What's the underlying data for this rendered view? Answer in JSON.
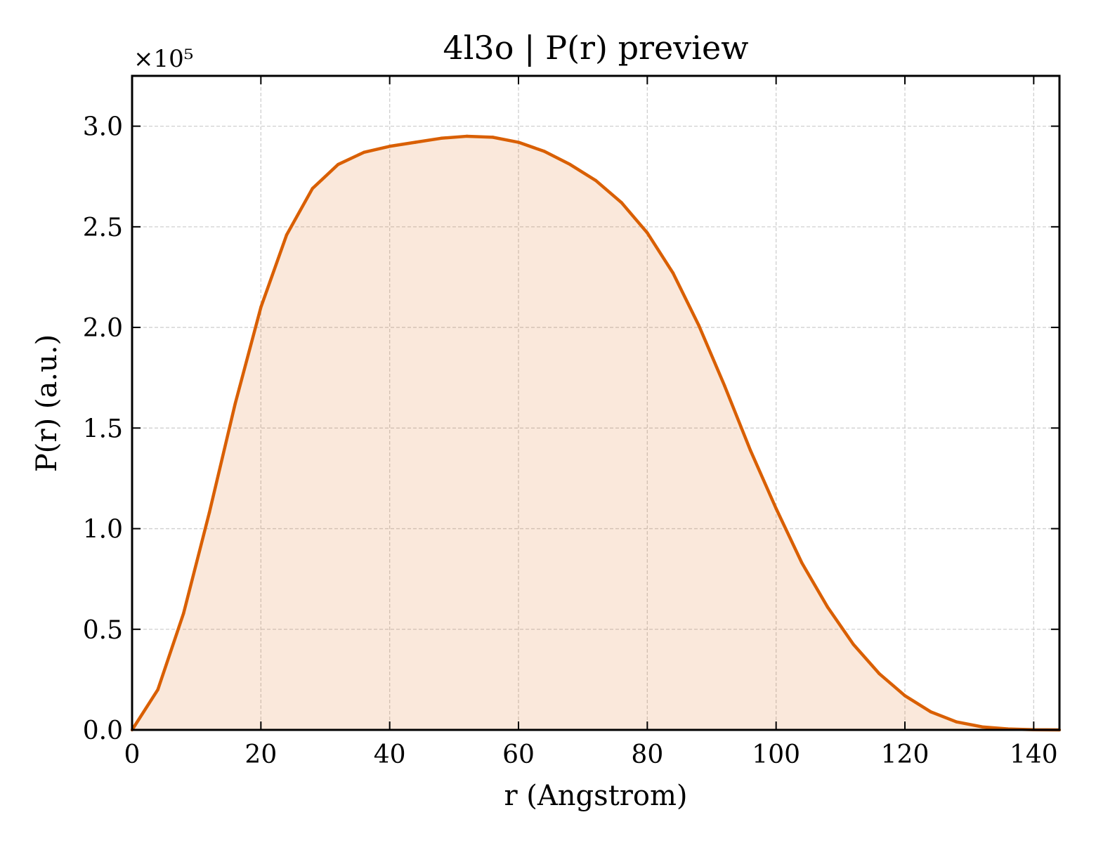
{
  "chart_data": {
    "type": "area",
    "title": "4l3o | P(r) preview",
    "xlabel": "r (Angstrom)",
    "ylabel": "P(r) (a.u.)",
    "y_multiplier_label": "×10⁵",
    "y_scale_factor": 100000,
    "xlim": [
      0,
      144
    ],
    "ylim": [
      0,
      325000
    ],
    "xticks": [
      0,
      20,
      40,
      60,
      80,
      100,
      120,
      140
    ],
    "xtick_labels": [
      "0",
      "20",
      "40",
      "60",
      "80",
      "100",
      "120",
      "140"
    ],
    "yticks": [
      0,
      50000,
      100000,
      150000,
      200000,
      250000,
      300000
    ],
    "ytick_labels": [
      "0.0",
      "0.5",
      "1.0",
      "1.5",
      "2.0",
      "2.5",
      "3.0"
    ],
    "grid": true,
    "legend": "none",
    "series": [
      {
        "color": "#d95f02",
        "fill_color": "#d95f02",
        "fill_opacity": 0.14,
        "x": [
          0,
          4,
          8,
          12,
          16,
          20,
          24,
          28,
          32,
          36,
          40,
          44,
          48,
          52,
          56,
          60,
          64,
          68,
          72,
          76,
          80,
          84,
          88,
          92,
          96,
          100,
          104,
          108,
          112,
          116,
          120,
          124,
          128,
          132,
          136,
          140,
          144
        ],
        "y": [
          0,
          20000,
          58000,
          108000,
          162000,
          210000,
          246000,
          269000,
          281000,
          287000,
          290000,
          292000,
          294000,
          295000,
          294500,
          292000,
          287500,
          281000,
          273000,
          262000,
          247000,
          227000,
          201000,
          171000,
          139000,
          110000,
          83000,
          61000,
          42500,
          28000,
          17000,
          9000,
          4000,
          1500,
          500,
          100,
          0
        ]
      }
    ]
  }
}
